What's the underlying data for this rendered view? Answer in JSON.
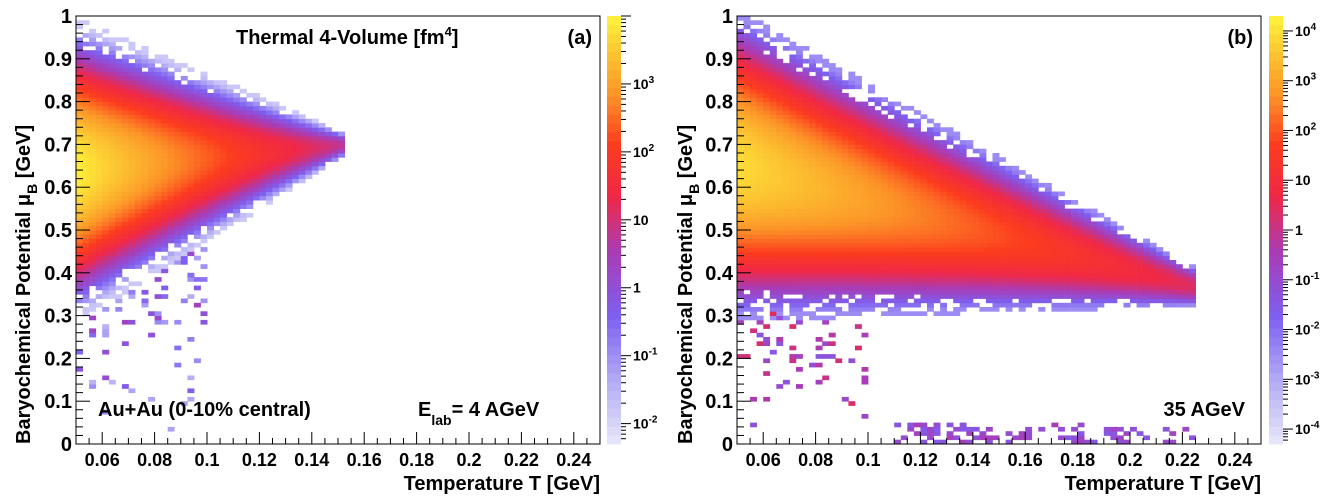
{
  "chart_data": [
    {
      "type": "heatmap",
      "panel_label": "(a)",
      "title": "Thermal 4-Volume [fm",
      "title_sup": "4",
      "title_end": "]",
      "xlabel": "Temperature T [GeV]",
      "ylabel_main": "Baryochemical Potential μ",
      "ylabel_sub": "B",
      "ylabel_end": " [GeV]",
      "xlim": [
        0.05,
        0.25
      ],
      "ylim": [
        0,
        1
      ],
      "x_ticks": [
        "0.06",
        "0.08",
        "0.1",
        "0.12",
        "0.14",
        "0.16",
        "0.18",
        "0.2",
        "0.22",
        "0.24"
      ],
      "y_ticks": [
        "0",
        "0.1",
        "0.2",
        "0.3",
        "0.4",
        "0.5",
        "0.6",
        "0.7",
        "0.8",
        "0.9",
        "1"
      ],
      "annotation_system": "Au+Au (0-10% central)",
      "annotation_energy_main": "E",
      "annotation_energy_sub": "lab",
      "annotation_energy_end": "= 4 AGeV",
      "colorbar_log_range": [
        -2.3,
        4.0
      ],
      "colorbar_ticks": [
        {
          "exp": -2,
          "base": "10",
          "sup": "-2"
        },
        {
          "exp": -1,
          "base": "10",
          "sup": "-1"
        },
        {
          "exp": 0,
          "base": "1",
          "sup": ""
        },
        {
          "exp": 1,
          "base": "10",
          "sup": ""
        },
        {
          "exp": 2,
          "base": "10",
          "sup": "2"
        },
        {
          "exp": 3,
          "base": "10",
          "sup": "3"
        }
      ],
      "density_model": {
        "band_upper_start": 0.97,
        "band_upper_end": 0.72,
        "band_lower_start": 0.3,
        "band_lower_end": 0.67,
        "t_end": 0.152,
        "peak_center": 0.65,
        "peak_log": 3.9,
        "edge_log": -1.8
      }
    },
    {
      "type": "heatmap",
      "panel_label": "(b)",
      "xlabel": "Temperature T [GeV]",
      "ylabel_main": "Baryochemical Potential μ",
      "ylabel_sub": "B",
      "ylabel_end": " [GeV]",
      "xlim": [
        0.05,
        0.25
      ],
      "ylim": [
        0,
        1
      ],
      "x_ticks": [
        "0.06",
        "0.08",
        "0.1",
        "0.12",
        "0.14",
        "0.16",
        "0.18",
        "0.2",
        "0.22",
        "0.24"
      ],
      "y_ticks": [
        "0",
        "0.1",
        "0.2",
        "0.3",
        "0.4",
        "0.5",
        "0.6",
        "0.7",
        "0.8",
        "0.9",
        "1"
      ],
      "annotation_energy_end": "35 AGeV",
      "colorbar_log_range": [
        -4.3,
        4.3
      ],
      "colorbar_ticks": [
        {
          "exp": -4,
          "base": "10",
          "sup": "-4"
        },
        {
          "exp": -3,
          "base": "10",
          "sup": "-3"
        },
        {
          "exp": -2,
          "base": "10",
          "sup": "-2"
        },
        {
          "exp": -1,
          "base": "10",
          "sup": "-1"
        },
        {
          "exp": 0,
          "base": "1",
          "sup": ""
        },
        {
          "exp": 1,
          "base": "10",
          "sup": ""
        },
        {
          "exp": 2,
          "base": "10",
          "sup": "2"
        },
        {
          "exp": 3,
          "base": "10",
          "sup": "3"
        },
        {
          "exp": 4,
          "base": "10",
          "sup": "4"
        }
      ],
      "density_model": {
        "band_upper_start": 0.99,
        "band_upper_end": 0.4,
        "band_lower_start": 0.3,
        "band_lower_end": 0.32,
        "t_end": 0.225,
        "peak_center": 0.52,
        "peak_log": 3.9,
        "edge_log": -2.5,
        "tail_log": -1.5
      }
    }
  ]
}
